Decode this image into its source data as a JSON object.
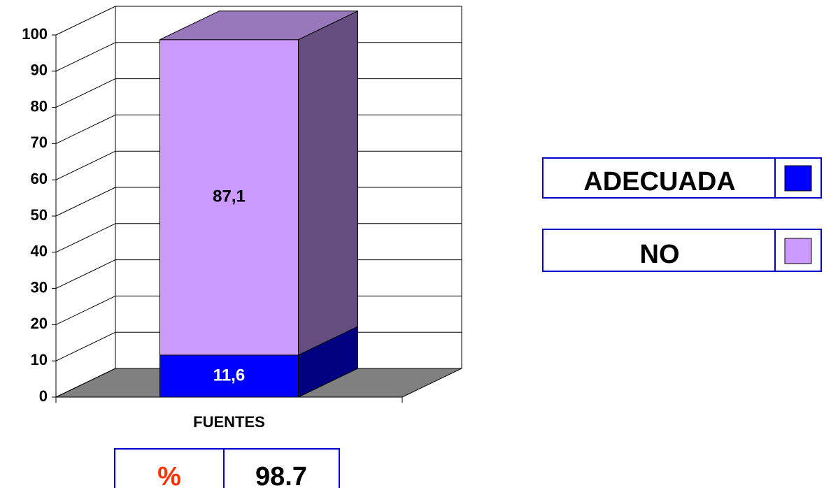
{
  "chart_data": {
    "type": "bar",
    "stacked": true,
    "categories": [
      "FUENTES"
    ],
    "series": [
      {
        "name": "ADECUADA",
        "color": "#0000ff",
        "side_color": "#000080",
        "values": [
          11.6
        ],
        "value_labels": [
          "11,6"
        ],
        "label_color": "#ffffff"
      },
      {
        "name": "NO",
        "color": "#cc99ff",
        "side_color": "#664d80",
        "top_color": "#9977bb",
        "values": [
          87.1
        ],
        "value_labels": [
          "87,1"
        ],
        "label_color": "#000000"
      }
    ],
    "ylim": [
      0,
      100
    ],
    "yticks": [
      0,
      10,
      20,
      30,
      40,
      50,
      60,
      70,
      80,
      90,
      100
    ],
    "grid": true,
    "table": {
      "label": "%",
      "value": 98.7
    }
  }
}
